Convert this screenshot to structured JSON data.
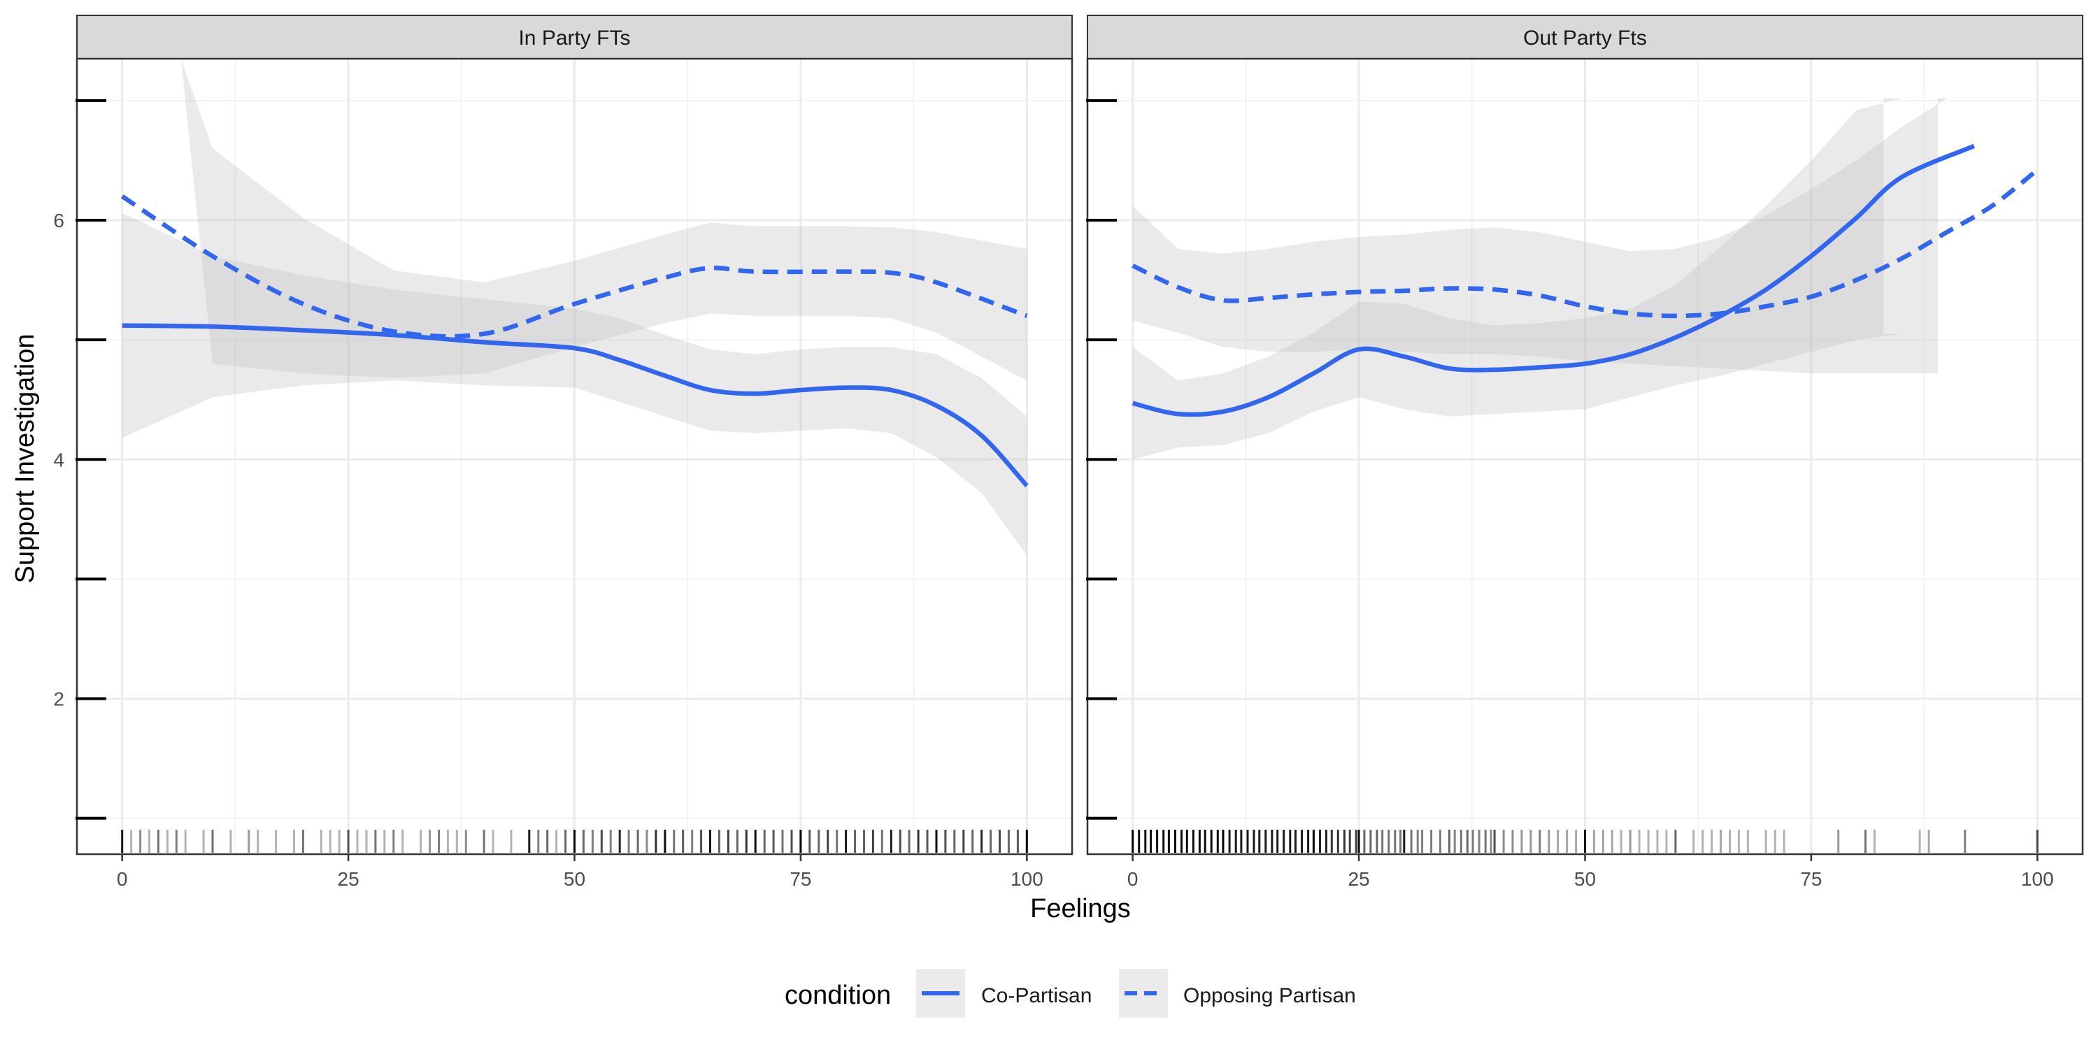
{
  "chart_data": {
    "type": "line",
    "xlabel": "Feelings",
    "ylabel": "Support Investigation",
    "xlim": [
      -5,
      105
    ],
    "ylim": [
      0.7,
      7.35
    ],
    "x_ticks": [
      0,
      25,
      50,
      75,
      100
    ],
    "y_ticks": [
      2,
      4,
      6
    ],
    "y_minor_ticks": [
      1,
      2,
      3,
      4,
      5,
      6,
      7
    ],
    "grid": true,
    "legend": {
      "title": "condition",
      "position": "bottom",
      "entries": [
        {
          "name": "Co-Partisan",
          "linetype": "solid"
        },
        {
          "name": "Opposing Partisan",
          "linetype": "dashed"
        }
      ]
    },
    "colors": {
      "line": "#3366ee",
      "ribbon": "#bdbdbd",
      "strip": "#d9d9d9",
      "grid": "#ebebeb"
    },
    "panels": [
      {
        "title": "In Party FTs",
        "series": [
          {
            "name": "Co-Partisan",
            "x": [
              0,
              10,
              20,
              30,
              40,
              50,
              55,
              60,
              65,
              70,
              75,
              80,
              85,
              90,
              95,
              100
            ],
            "y": [
              5.12,
              5.11,
              5.08,
              5.04,
              4.98,
              4.93,
              4.83,
              4.7,
              4.58,
              4.55,
              4.58,
              4.6,
              4.58,
              4.45,
              4.2,
              3.78
            ],
            "ci_low": [
              4.18,
              4.52,
              4.62,
              4.66,
              4.62,
              4.6,
              4.48,
              4.36,
              4.24,
              4.22,
              4.24,
              4.26,
              4.22,
              4.02,
              3.72,
              3.2
            ],
            "ci_high": [
              6.06,
              5.7,
              5.54,
              5.42,
              5.34,
              5.26,
              5.18,
              5.04,
              4.92,
              4.88,
              4.92,
              4.94,
              4.94,
              4.88,
              4.68,
              4.36
            ]
          },
          {
            "name": "Opposing Partisan",
            "x": [
              0,
              10,
              20,
              30,
              40,
              50,
              60,
              65,
              70,
              80,
              85,
              90,
              100
            ],
            "y": [
              6.2,
              5.7,
              5.3,
              5.07,
              5.05,
              5.3,
              5.52,
              5.6,
              5.57,
              5.57,
              5.56,
              5.48,
              5.2
            ],
            "ci_low": [
              7.35,
              4.8,
              4.72,
              4.68,
              4.72,
              4.94,
              5.14,
              5.22,
              5.2,
              5.2,
              5.18,
              5.06,
              4.66
            ],
            "ci_high": [
              7.35,
              6.6,
              6.02,
              5.58,
              5.48,
              5.66,
              5.88,
              5.98,
              5.95,
              5.95,
              5.94,
              5.9,
              5.76
            ],
            "ci_x_start": 6.5
          }
        ]
      },
      {
        "title": "Out Party Fts",
        "series": [
          {
            "name": "Co-Partisan",
            "x": [
              0,
              5,
              10,
              15,
              20,
              25,
              30,
              35,
              40,
              45,
              50,
              55,
              60,
              65,
              70,
              75,
              80,
              85,
              93
            ],
            "y": [
              4.47,
              4.38,
              4.4,
              4.52,
              4.72,
              4.92,
              4.86,
              4.76,
              4.75,
              4.77,
              4.8,
              4.88,
              5.02,
              5.2,
              5.42,
              5.7,
              6.02,
              6.36,
              6.62
            ],
            "ci_low": [
              4.0,
              4.1,
              4.12,
              4.22,
              4.4,
              4.52,
              4.42,
              4.36,
              4.38,
              4.4,
              4.42,
              4.52,
              4.62,
              4.7,
              4.8,
              4.9,
              5.0,
              5.05,
              5.05
            ],
            "ci_high": [
              4.94,
              4.66,
              4.72,
              4.86,
              5.06,
              5.32,
              5.3,
              5.18,
              5.12,
              5.14,
              5.18,
              5.26,
              5.46,
              5.78,
              6.12,
              6.5,
              6.92,
              7.02,
              7.02
            ],
            "ci_x_end": 83
          },
          {
            "name": "Opposing Partisan",
            "x": [
              0,
              5,
              10,
              15,
              20,
              25,
              30,
              35,
              40,
              45,
              50,
              55,
              60,
              65,
              70,
              75,
              80,
              85,
              90,
              95,
              100
            ],
            "y": [
              5.62,
              5.44,
              5.33,
              5.35,
              5.38,
              5.4,
              5.41,
              5.43,
              5.42,
              5.37,
              5.28,
              5.22,
              5.2,
              5.22,
              5.28,
              5.36,
              5.5,
              5.68,
              5.9,
              6.12,
              6.42
            ],
            "ci_low": [
              5.16,
              5.06,
              4.94,
              4.9,
              4.9,
              4.92,
              4.9,
              4.88,
              4.88,
              4.86,
              4.82,
              4.8,
              4.78,
              4.76,
              4.74,
              4.72,
              4.72,
              4.72,
              4.72,
              4.72,
              4.72
            ],
            "ci_high": [
              6.12,
              5.76,
              5.72,
              5.76,
              5.82,
              5.86,
              5.88,
              5.92,
              5.94,
              5.9,
              5.82,
              5.74,
              5.76,
              5.86,
              6.04,
              6.26,
              6.5,
              6.78,
              7.02,
              7.02,
              7.02
            ],
            "ci_x_end": 89
          }
        ]
      }
    ],
    "rug": [
      {
        "x": [
          0,
          1,
          2,
          3,
          4,
          5,
          6,
          7,
          9,
          10,
          12,
          14,
          15,
          17,
          19,
          20,
          22,
          23,
          24,
          25,
          26,
          27,
          28,
          29,
          30,
          31,
          33,
          34,
          35,
          36,
          37,
          38,
          40,
          41,
          43,
          45,
          46,
          47,
          48,
          49,
          50,
          51,
          52,
          53,
          54,
          55,
          56,
          57,
          58,
          59,
          60,
          61,
          62,
          63,
          64,
          65,
          66,
          67,
          68,
          69,
          70,
          71,
          72,
          73,
          74,
          75,
          76,
          77,
          78,
          79,
          80,
          81,
          82,
          83,
          84,
          85,
          86,
          87,
          88,
          89,
          90,
          91,
          92,
          93,
          94,
          95,
          96,
          97,
          98,
          99,
          100
        ],
        "shade": [
          0.9,
          0.3,
          0.45,
          0.3,
          0.55,
          0.3,
          0.5,
          0.3,
          0.3,
          0.55,
          0.3,
          0.4,
          0.3,
          0.3,
          0.3,
          0.55,
          0.3,
          0.3,
          0.3,
          0.65,
          0.3,
          0.3,
          0.55,
          0.3,
          0.5,
          0.3,
          0.3,
          0.4,
          0.5,
          0.3,
          0.3,
          0.45,
          0.55,
          0.3,
          0.3,
          0.9,
          0.5,
          0.6,
          0.3,
          0.6,
          0.95,
          0.6,
          0.5,
          0.7,
          0.5,
          0.85,
          0.5,
          0.6,
          0.45,
          0.8,
          0.95,
          0.55,
          0.65,
          0.5,
          0.7,
          0.9,
          0.6,
          0.75,
          0.6,
          0.8,
          0.95,
          0.6,
          0.65,
          0.55,
          0.7,
          1,
          0.65,
          0.6,
          0.75,
          0.55,
          0.9,
          0.6,
          0.6,
          0.75,
          0.55,
          0.9,
          0.7,
          0.6,
          0.8,
          0.65,
          0.95,
          0.7,
          0.6,
          0.75,
          0.6,
          0.85,
          0.6,
          0.7,
          0.6,
          0.65,
          1
        ]
      },
      {
        "x": [
          0,
          0.7,
          1.4,
          2,
          2.7,
          3.4,
          4,
          4.7,
          5.4,
          6,
          6.7,
          7.4,
          8,
          8.7,
          9.4,
          10,
          10.7,
          11.4,
          12,
          12.7,
          13.4,
          14,
          14.7,
          15.4,
          16,
          16.7,
          17.4,
          18,
          18.7,
          19.4,
          20,
          20.7,
          21.4,
          22,
          22.7,
          23.4,
          24,
          24.7,
          25,
          25.6,
          26.3,
          27,
          27.6,
          28.3,
          29,
          29.6,
          30,
          30.8,
          31.5,
          32,
          33,
          34,
          35,
          35.6,
          36.3,
          37,
          37.6,
          38.3,
          39,
          39.6,
          40,
          41,
          42,
          43,
          44,
          45,
          46,
          47,
          48,
          49,
          50,
          51,
          52,
          53,
          54,
          55,
          56,
          57,
          58,
          59,
          60,
          62,
          63,
          64,
          65,
          66,
          67,
          68,
          70,
          71,
          72,
          78,
          81,
          82,
          87,
          88,
          92,
          100
        ],
        "shade": [
          1,
          0.95,
          0.95,
          0.95,
          0.95,
          0.95,
          0.95,
          0.95,
          0.95,
          0.95,
          0.95,
          0.95,
          0.95,
          0.95,
          0.95,
          1,
          0.9,
          0.9,
          0.9,
          0.9,
          0.9,
          0.9,
          0.9,
          0.9,
          0.9,
          0.9,
          0.9,
          0.9,
          0.9,
          0.9,
          1,
          0.85,
          0.85,
          0.8,
          0.8,
          0.8,
          0.75,
          0.75,
          0.95,
          0.6,
          0.6,
          0.6,
          0.55,
          0.55,
          0.55,
          0.55,
          0.9,
          0.55,
          0.5,
          0.5,
          0.5,
          0.5,
          0.6,
          0.5,
          0.55,
          0.6,
          0.5,
          0.5,
          0.55,
          0.45,
          0.7,
          0.45,
          0.45,
          0.4,
          0.4,
          0.5,
          0.4,
          0.35,
          0.35,
          0.35,
          0.9,
          0.35,
          0.35,
          0.35,
          0.3,
          0.4,
          0.3,
          0.3,
          0.3,
          0.3,
          0.6,
          0.3,
          0.3,
          0.3,
          0.35,
          0.3,
          0.3,
          0.3,
          0.3,
          0.3,
          0.3,
          0.4,
          0.55,
          0.3,
          0.3,
          0.35,
          0.5,
          0.7
        ]
      }
    ]
  }
}
